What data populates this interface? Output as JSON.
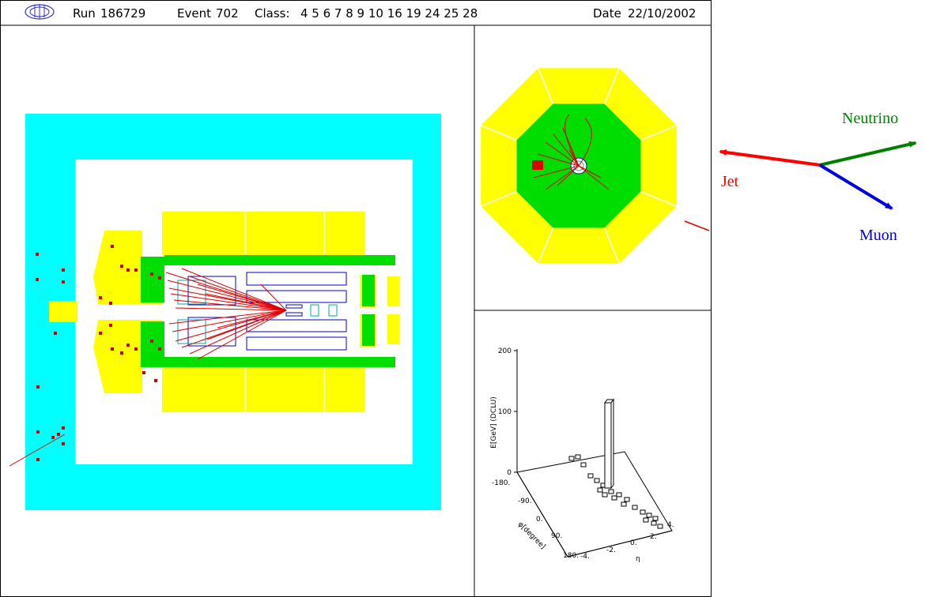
{
  "header": {
    "run_label": "Run",
    "run_number": "186729",
    "event_label": "Event",
    "event_number": "702",
    "class_label": "Class:",
    "class_values": "4 5 6 7 8 9 10 16 19 24 25 28",
    "date_label": "Date",
    "date_value": "22/10/2002",
    "logo_icon": "detector-logo-icon"
  },
  "arrows": {
    "jet": {
      "label": "Jet",
      "color": "#ff0000"
    },
    "neutrino": {
      "label": "Neutrino",
      "color": "#008000"
    },
    "muon": {
      "label": "Muon",
      "color": "#0000cc"
    }
  },
  "colors": {
    "outer_calorimeter": "#00ffff",
    "hadronic": "#ffff00",
    "em_calorimeter": "#00ff00",
    "tracks": "#dd0000",
    "tracker": "#0000cc"
  },
  "lego_plot": {
    "ylabel": "E[GeV] (DCLU)",
    "z_ticks": [
      "0",
      "100",
      "200"
    ],
    "phi_label": "φ[degree]",
    "phi_ticks": [
      "-180.",
      "-90.",
      "0.",
      "90.",
      "180."
    ],
    "eta_label": "η",
    "eta_ticks": [
      "-4.",
      "-2.",
      "0.",
      "2.",
      "4."
    ]
  }
}
